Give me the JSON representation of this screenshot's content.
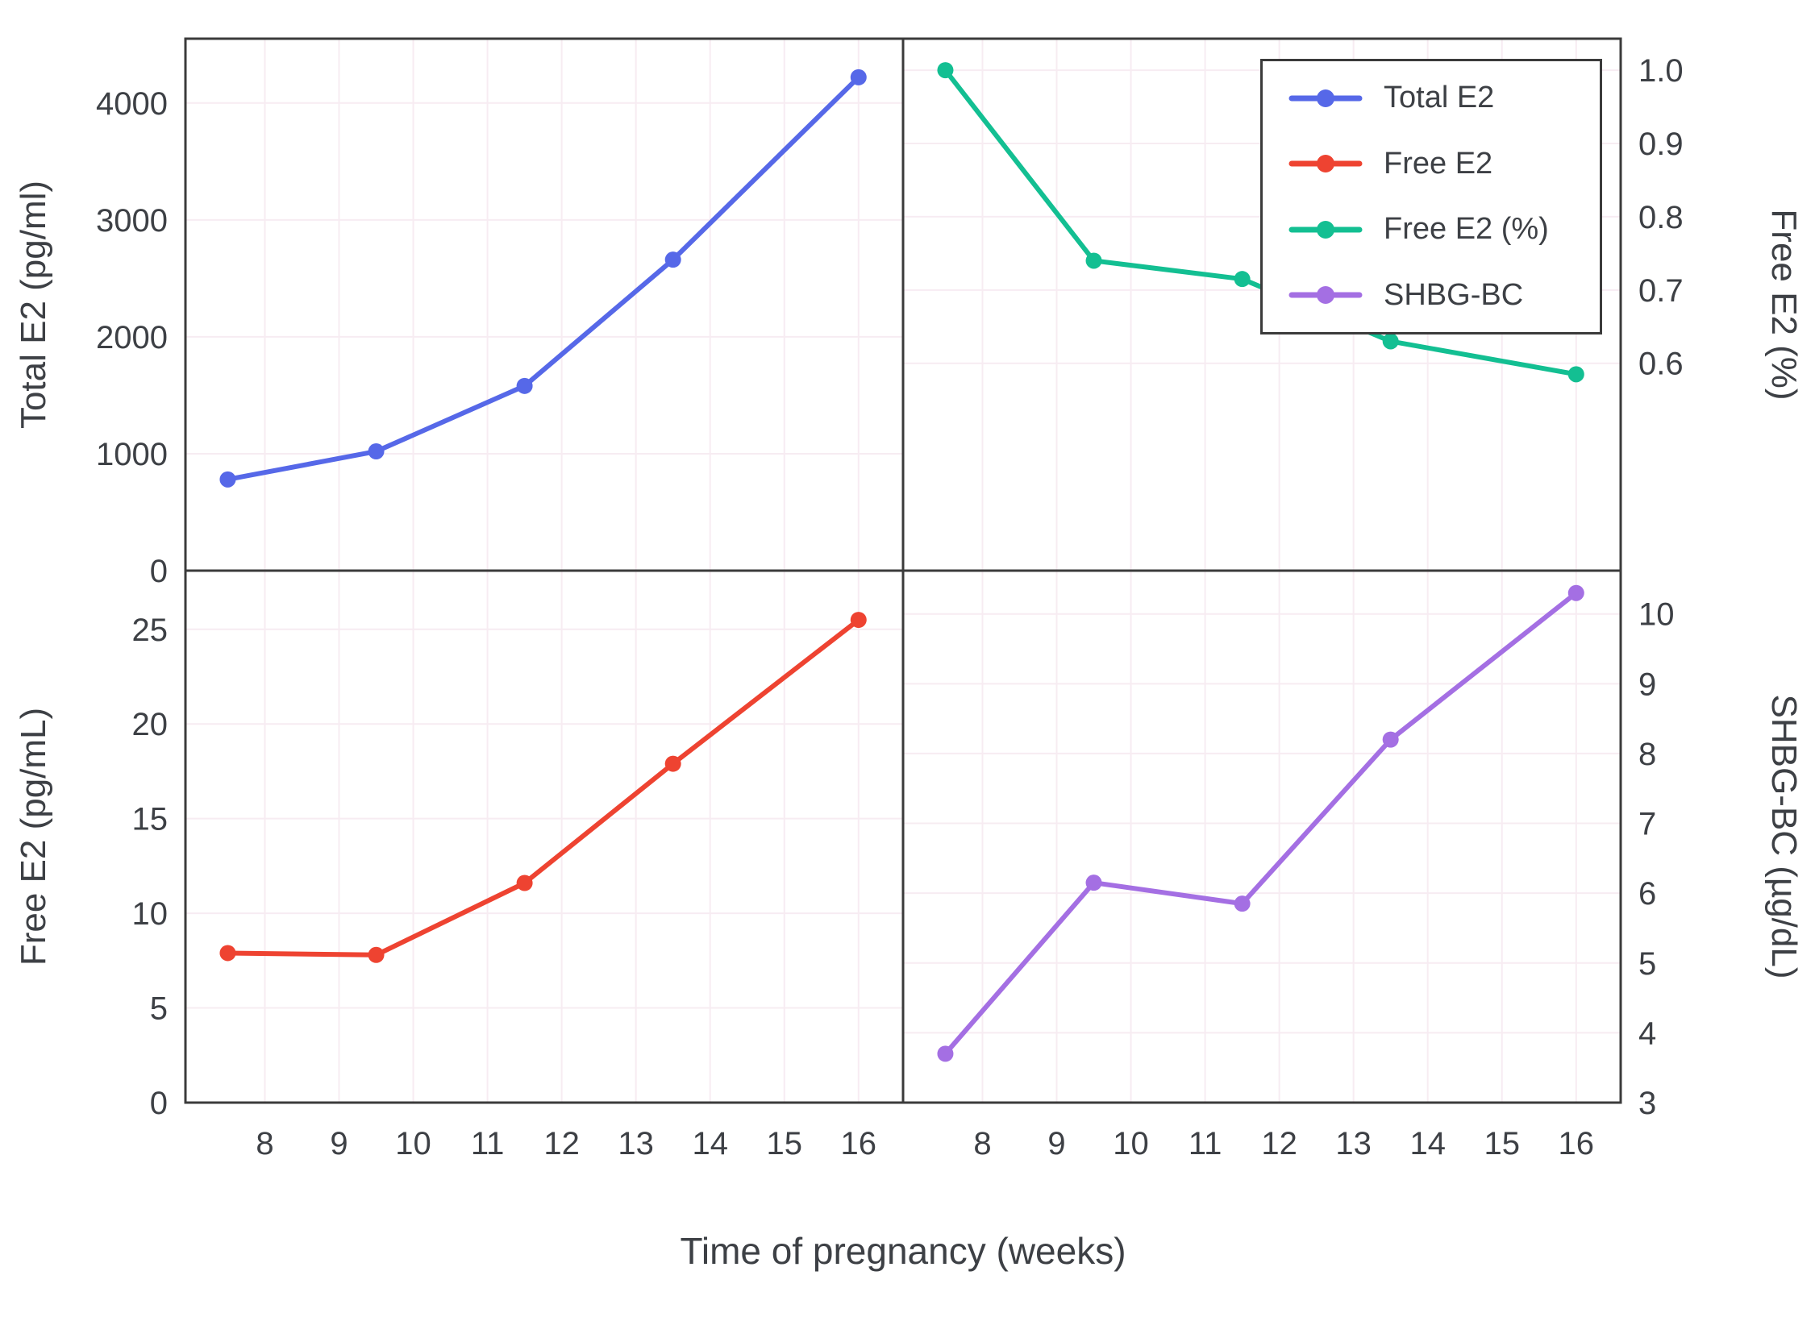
{
  "figure": {
    "xlabel": "Time of pregnancy (weeks)",
    "background": "#ffffff",
    "border_color": "#3b3b3b",
    "grid_color": "#f7ecf2",
    "text_color": "#3d4045",
    "xlim": [
      6.93,
      16.6
    ],
    "xticks": {
      "values": [
        8,
        9,
        10,
        11,
        12,
        13,
        14,
        15,
        16
      ],
      "labels": [
        "8",
        "9",
        "10",
        "11",
        "12",
        "13",
        "14",
        "15",
        "16"
      ]
    }
  },
  "legend": {
    "entries": [
      {
        "label": "Total E2",
        "color": "#5668e8"
      },
      {
        "label": "Free E2",
        "color": "#ee4331"
      },
      {
        "label": "Free E2 (%)",
        "color": "#13bf92"
      },
      {
        "label": "SHBG-BC",
        "color": "#a46fe3"
      }
    ]
  },
  "chart_data": [
    {
      "type": "line",
      "id": "total-e2",
      "name": "Total E2",
      "panel": "top-left",
      "ylabel": "Total E2 (pg/ml)",
      "color": "#5668e8",
      "x": [
        7.5,
        9.5,
        11.5,
        13.5,
        16
      ],
      "values": [
        780,
        1020,
        1580,
        2660,
        4220
      ],
      "ylim": [
        0,
        4550
      ],
      "yticks": {
        "values": [
          0,
          1000,
          2000,
          3000,
          4000
        ],
        "labels": [
          "0",
          "1000",
          "2000",
          "3000",
          "4000"
        ]
      }
    },
    {
      "type": "line",
      "id": "free-e2-pct",
      "name": "Free E2 (%)",
      "panel": "top-right",
      "ylabel": "Free E2 (%)",
      "color": "#13bf92",
      "x": [
        7.5,
        9.5,
        11.5,
        13.5,
        16
      ],
      "values": [
        1.0,
        0.74,
        0.715,
        0.63,
        0.585
      ],
      "ylim": [
        0.317,
        1.043
      ],
      "yticks": {
        "values": [
          0.6,
          0.7,
          0.8,
          0.9,
          1.0
        ],
        "labels": [
          "0.6",
          "0.7",
          "0.8",
          "0.9",
          "1.0"
        ]
      }
    },
    {
      "type": "line",
      "id": "free-e2",
      "name": "Free E2",
      "panel": "bottom-left",
      "ylabel": "Free E2 (pg/mL)",
      "color": "#ee4331",
      "x": [
        7.5,
        9.5,
        11.5,
        13.5,
        16
      ],
      "values": [
        7.9,
        7.8,
        11.6,
        17.9,
        25.5
      ],
      "ylim": [
        0,
        28.1
      ],
      "yticks": {
        "values": [
          0,
          5,
          10,
          15,
          20,
          25
        ],
        "labels": [
          "0",
          "5",
          "10",
          "15",
          "20",
          "25"
        ]
      }
    },
    {
      "type": "line",
      "id": "shbg-bc",
      "name": "SHBG-BC",
      "panel": "bottom-right",
      "ylabel": "SHBG-BC (µg/dL)",
      "color": "#a46fe3",
      "x": [
        7.5,
        9.5,
        11.5,
        13.5,
        16
      ],
      "values": [
        3.7,
        6.15,
        5.85,
        8.2,
        10.3
      ],
      "ylim": [
        3,
        10.62
      ],
      "yticks": {
        "values": [
          3,
          4,
          5,
          6,
          7,
          8,
          9,
          10
        ],
        "labels": [
          "3",
          "4",
          "5",
          "6",
          "7",
          "8",
          "9",
          "10"
        ]
      }
    }
  ]
}
